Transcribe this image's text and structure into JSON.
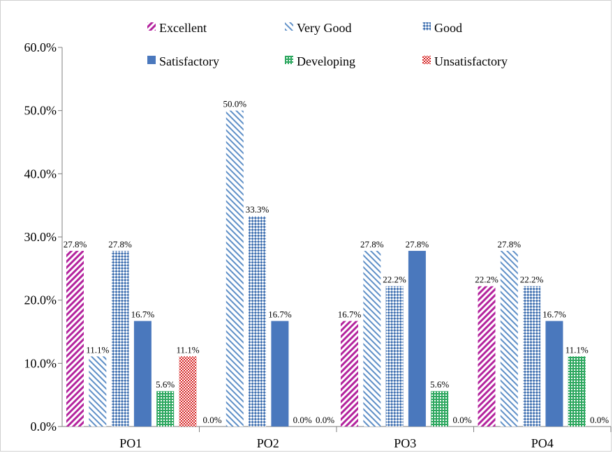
{
  "chart_data": {
    "type": "bar",
    "categories": [
      "PO1",
      "PO2",
      "PO3",
      "PO4"
    ],
    "series": [
      {
        "name": "Excellent",
        "color": "#b4249e",
        "pattern": "diag-right",
        "values": [
          27.8,
          0.0,
          16.7,
          22.2
        ],
        "labels": [
          "27.8%",
          "0.0%",
          "16.7%",
          "22.2%"
        ]
      },
      {
        "name": "Very Good",
        "color": "#5e8fc7",
        "pattern": "diag-left",
        "values": [
          11.1,
          50.0,
          27.8,
          27.8
        ],
        "labels": [
          "11.1%",
          "50.0%",
          "27.8%",
          "27.8%"
        ]
      },
      {
        "name": "Good",
        "color": "#4a7ab8",
        "pattern": "checker",
        "values": [
          27.8,
          33.3,
          22.2,
          22.2
        ],
        "labels": [
          "27.8%",
          "33.3%",
          "22.2%",
          "22.2%"
        ]
      },
      {
        "name": "Satisfactory",
        "color": "#4a78bd",
        "pattern": "solid",
        "values": [
          16.7,
          16.7,
          27.8,
          16.7
        ],
        "labels": [
          "16.7%",
          "16.7%",
          "27.8%",
          "16.7%"
        ]
      },
      {
        "name": "Developing",
        "color": "#2ea860",
        "pattern": "grid",
        "values": [
          5.6,
          0.0,
          5.6,
          11.1
        ],
        "labels": [
          "5.6%",
          "0.0%",
          "5.6%",
          "11.1%"
        ]
      },
      {
        "name": "Unsatisfactory",
        "color": "#d62020",
        "pattern": "checker-red",
        "values": [
          11.1,
          0.0,
          0.0,
          0.0
        ],
        "labels": [
          "11.1%",
          "0.0%",
          "0.0%",
          "0.0%"
        ]
      }
    ],
    "y_ticks": [
      "0.0%",
      "10.0%",
      "20.0%",
      "30.0%",
      "40.0%",
      "50.0%",
      "60.0%"
    ],
    "ylim": [
      0,
      60
    ],
    "grid": false,
    "legend_position": "top"
  }
}
